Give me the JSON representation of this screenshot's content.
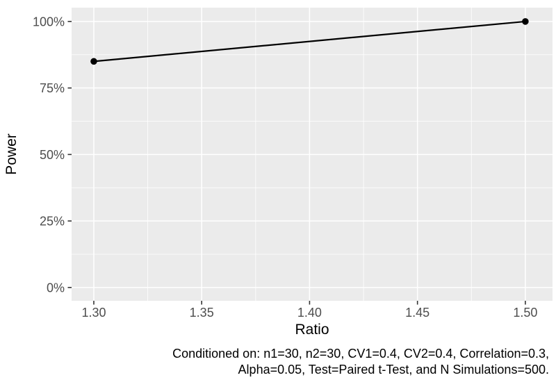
{
  "chart_data": {
    "type": "line",
    "title": "",
    "xlabel": "Ratio",
    "ylabel": "Power",
    "xlim": [
      1.2897,
      1.5126
    ],
    "ylim": [
      -0.05,
      1.052
    ],
    "x_ticks": [
      {
        "v": 1.3,
        "label": "1.30"
      },
      {
        "v": 1.35,
        "label": "1.35"
      },
      {
        "v": 1.4,
        "label": "1.40"
      },
      {
        "v": 1.45,
        "label": "1.45"
      },
      {
        "v": 1.5,
        "label": "1.50"
      }
    ],
    "y_ticks": [
      {
        "v": 0.0,
        "label": "0%"
      },
      {
        "v": 0.25,
        "label": "25%"
      },
      {
        "v": 0.5,
        "label": "50%"
      },
      {
        "v": 0.75,
        "label": "75%"
      },
      {
        "v": 1.0,
        "label": "100%"
      }
    ],
    "x_minor": [
      1.325,
      1.375,
      1.425,
      1.475
    ],
    "y_minor": [
      0.125,
      0.375,
      0.625,
      0.875
    ],
    "grid": "major-and-minor",
    "legend": "none",
    "series": [
      {
        "name": "Power",
        "color": "#000000",
        "marker": "circle",
        "points": [
          {
            "x": 1.3,
            "y": 0.85
          },
          {
            "x": 1.5,
            "y": 1.0
          }
        ]
      }
    ],
    "style": {
      "panel_bg": "#EBEBEB",
      "grid_color": "#FFFFFF",
      "tick_label_color": "#4D4D4D",
      "tick_mark_color": "#333333",
      "axis_title_color": "#000000",
      "caption_color": "#000000",
      "background": "#FFFFFF"
    }
  },
  "caption": {
    "line1": "Conditioned on: n1=30, n2=30, CV1=0.4, CV2=0.4, Correlation=0.3,",
    "line2": "Alpha=0.05, Test=Paired t-Test, and N Simulations=500."
  }
}
